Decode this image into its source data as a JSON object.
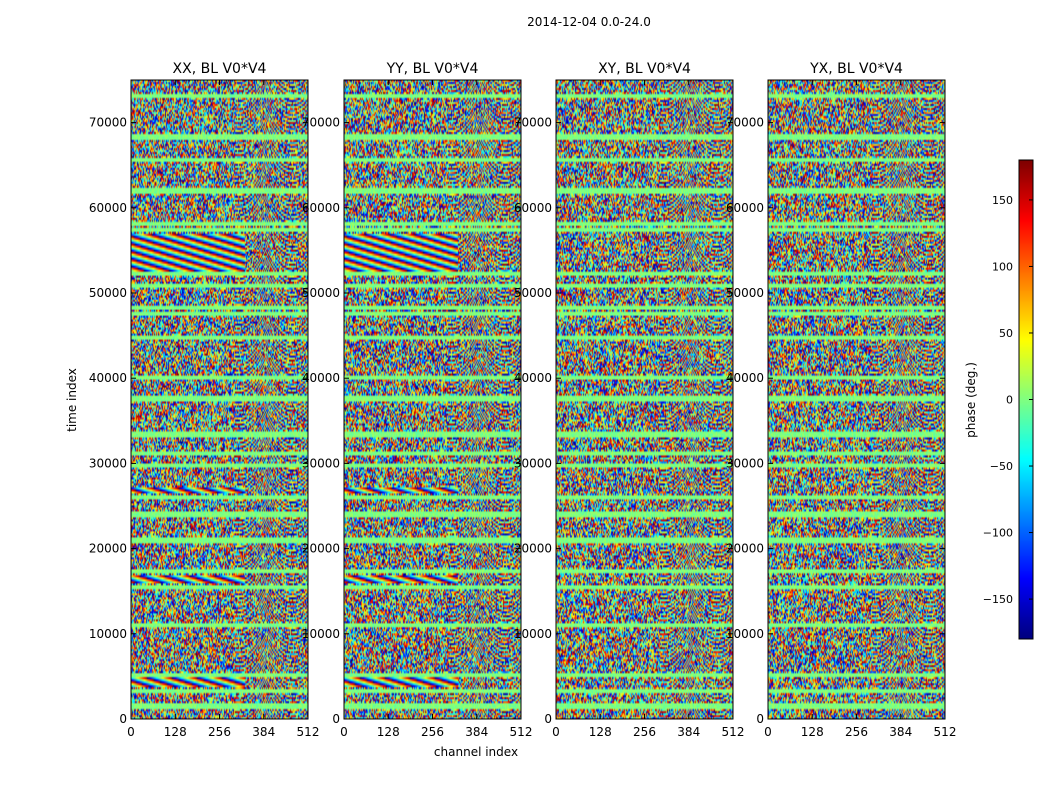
{
  "figure": {
    "suptitle": "2014-12-04 0.0-24.0",
    "xlabel": "channel index",
    "ylabel": "time index"
  },
  "colorbar": {
    "label": "phase (deg.)",
    "min": -180,
    "max": 180,
    "ticks": [
      150,
      100,
      50,
      0,
      -50,
      -100,
      -150
    ],
    "tick_labels": [
      "150",
      "100",
      "50",
      "0",
      "−50",
      "−100",
      "−150"
    ]
  },
  "chart_data": [
    {
      "type": "heatmap",
      "title": "XX, BL V0*V4",
      "xlabel": "channel index",
      "ylabel": "time index",
      "xlim": [
        0,
        512
      ],
      "ylim": [
        0,
        75000
      ],
      "xticks": [
        0,
        128,
        256,
        384,
        512
      ],
      "xtick_labels": [
        "0",
        "128",
        "256",
        "384",
        "512"
      ],
      "yticks": [
        0,
        10000,
        20000,
        30000,
        40000,
        50000,
        60000,
        70000
      ],
      "ytick_labels": [
        "0",
        "10000",
        "20000",
        "30000",
        "40000",
        "50000",
        "60000",
        "70000"
      ],
      "value_range": [
        -180,
        180
      ],
      "colormap": "jet"
    },
    {
      "type": "heatmap",
      "title": "YY, BL V0*V4",
      "xlabel": "channel index",
      "ylabel": "time index",
      "xlim": [
        0,
        512
      ],
      "ylim": [
        0,
        75000
      ],
      "xticks": [
        0,
        128,
        256,
        384,
        512
      ],
      "xtick_labels": [
        "0",
        "128",
        "256",
        "384",
        "512"
      ],
      "yticks": [
        0,
        10000,
        20000,
        30000,
        40000,
        50000,
        60000,
        70000
      ],
      "ytick_labels": [
        "0",
        "10000",
        "20000",
        "30000",
        "40000",
        "50000",
        "60000",
        "70000"
      ],
      "value_range": [
        -180,
        180
      ],
      "colormap": "jet"
    },
    {
      "type": "heatmap",
      "title": "XY, BL V0*V4",
      "xlabel": "channel index",
      "ylabel": "time index",
      "xlim": [
        0,
        512
      ],
      "ylim": [
        0,
        75000
      ],
      "xticks": [
        0,
        128,
        256,
        384,
        512
      ],
      "xtick_labels": [
        "0",
        "128",
        "256",
        "384",
        "512"
      ],
      "yticks": [
        0,
        10000,
        20000,
        30000,
        40000,
        50000,
        60000,
        70000
      ],
      "ytick_labels": [
        "0",
        "10000",
        "20000",
        "30000",
        "40000",
        "50000",
        "60000",
        "70000"
      ],
      "value_range": [
        -180,
        180
      ],
      "colormap": "jet"
    },
    {
      "type": "heatmap",
      "title": "YX, BL V0*V4",
      "xlabel": "channel index",
      "ylabel": "time index",
      "xlim": [
        0,
        512
      ],
      "ylim": [
        0,
        75000
      ],
      "xticks": [
        0,
        128,
        256,
        384,
        512
      ],
      "xtick_labels": [
        "0",
        "128",
        "256",
        "384",
        "512"
      ],
      "yticks": [
        0,
        10000,
        20000,
        30000,
        40000,
        50000,
        60000,
        70000
      ],
      "ytick_labels": [
        "0",
        "10000",
        "20000",
        "30000",
        "40000",
        "50000",
        "60000",
        "70000"
      ],
      "value_range": [
        -180,
        180
      ],
      "colormap": "jet"
    }
  ]
}
